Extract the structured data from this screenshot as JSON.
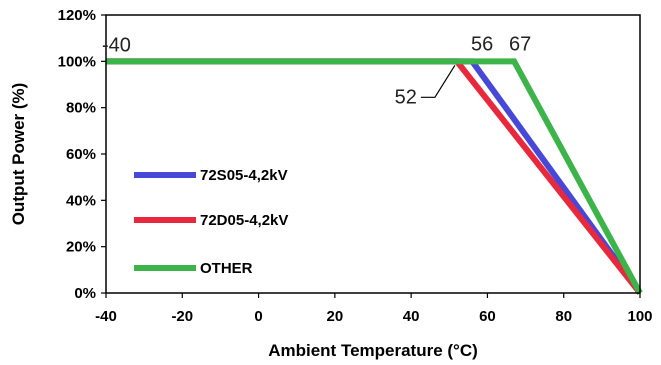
{
  "chart_data": {
    "type": "line",
    "title": "",
    "xlabel": "Ambient Temperature (°C)",
    "ylabel": "Output Power (%)",
    "xlim": [
      -40,
      100
    ],
    "ylim": [
      0,
      120
    ],
    "x_ticks": [
      "-40",
      "-20",
      "0",
      "20",
      "40",
      "60",
      "80",
      "100"
    ],
    "y_ticks": [
      "0%",
      "20%",
      "40%",
      "60%",
      "80%",
      "100%",
      "120%"
    ],
    "grid": false,
    "legend_position": "left-center",
    "series": [
      {
        "name": "72S05-4,2kV",
        "color": "#4848d8",
        "x": [
          -40,
          56,
          100
        ],
        "y": [
          100,
          100,
          0
        ]
      },
      {
        "name": "72D05-4,2kV",
        "color": "#e8283c",
        "x": [
          -40,
          52,
          100
        ],
        "y": [
          100,
          100,
          0
        ]
      },
      {
        "name": "OTHER",
        "color": "#3cb44a",
        "x": [
          -40,
          67,
          100
        ],
        "y": [
          100,
          100,
          0
        ]
      }
    ],
    "annotations": [
      {
        "text": "-40",
        "x": -40,
        "y": 100
      },
      {
        "text": "56",
        "x": 56,
        "y": 100
      },
      {
        "text": "67",
        "x": 67,
        "y": 100
      },
      {
        "text": "52",
        "x": 52,
        "y": 100
      }
    ]
  }
}
